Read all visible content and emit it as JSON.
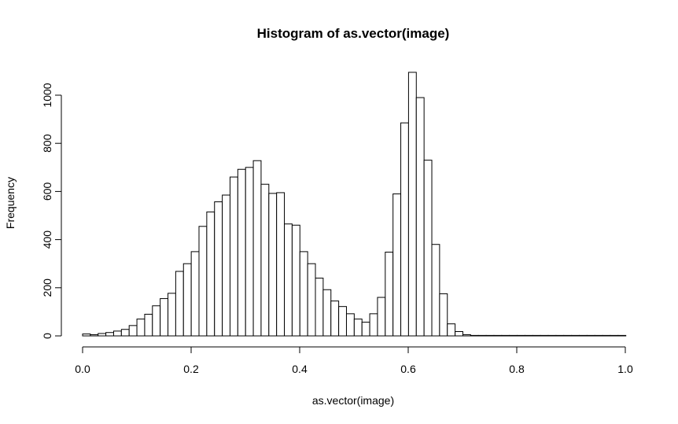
{
  "chart_data": {
    "type": "bar",
    "title": "Histogram of as.vector(image)",
    "xlabel": "as.vector(image)",
    "ylabel": "Frequency",
    "xlim": [
      0.0,
      1.0
    ],
    "ylim": [
      0,
      1100
    ],
    "bin_width": 0.0143,
    "x_ticks": [
      0.0,
      0.2,
      0.4,
      0.6,
      0.8,
      1.0
    ],
    "x_tick_labels": [
      "0.0",
      "0.2",
      "0.4",
      "0.6",
      "0.8",
      "1.0"
    ],
    "y_ticks": [
      0,
      200,
      400,
      600,
      800,
      1000
    ],
    "y_tick_labels": [
      "0",
      "200",
      "400",
      "600",
      "800",
      "1000"
    ],
    "grid": false,
    "values": [
      8,
      5,
      10,
      14,
      20,
      27,
      43,
      70,
      90,
      125,
      155,
      177,
      268,
      300,
      350,
      455,
      515,
      557,
      585,
      660,
      692,
      700,
      728,
      630,
      592,
      595,
      465,
      460,
      350,
      300,
      240,
      192,
      145,
      122,
      92,
      70,
      57,
      92,
      160,
      348,
      590,
      885,
      1095,
      990,
      730,
      380,
      175,
      50,
      18,
      5,
      2,
      2,
      2,
      2,
      2,
      2,
      2,
      2,
      2,
      2,
      2,
      2,
      2,
      2,
      2,
      2,
      2,
      2,
      2,
      2
    ]
  }
}
